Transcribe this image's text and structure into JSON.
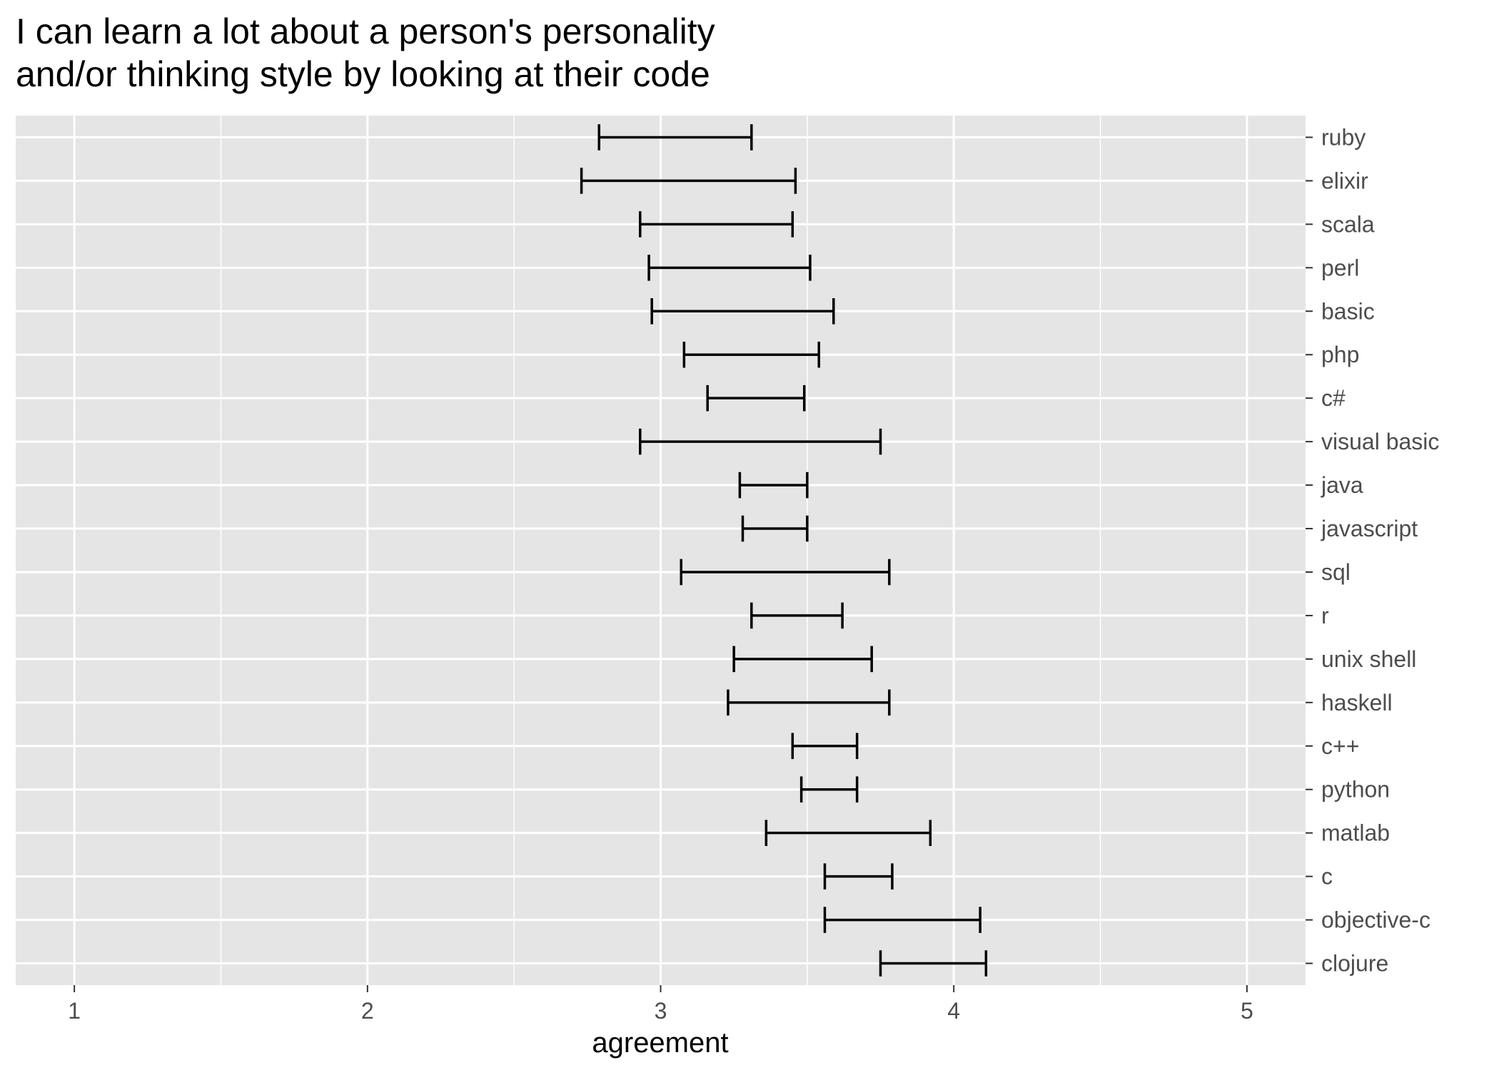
{
  "chart_data": {
    "type": "errorbar",
    "orientation": "horizontal",
    "title_lines": [
      "I can learn a lot about a person's personality",
      "and/or thinking style by looking at their code"
    ],
    "xlabel": "agreement",
    "ylabel": "",
    "xlim": [
      0.8,
      5.2
    ],
    "x_ticks": [
      1,
      2,
      3,
      4,
      5
    ],
    "y_axis_position": "right",
    "grid": true,
    "legend": "none",
    "colors": {
      "panel_background": "#e5e5e5",
      "gridline": "#ffffff",
      "errorbar": "#000000",
      "tick_label": "#4d4d4d"
    },
    "series": [
      {
        "label": "ruby",
        "low": 2.79,
        "high": 3.31
      },
      {
        "label": "elixir",
        "low": 2.73,
        "high": 3.46
      },
      {
        "label": "scala",
        "low": 2.93,
        "high": 3.45
      },
      {
        "label": "perl",
        "low": 2.96,
        "high": 3.51
      },
      {
        "label": "basic",
        "low": 2.97,
        "high": 3.59
      },
      {
        "label": "php",
        "low": 3.08,
        "high": 3.54
      },
      {
        "label": "c#",
        "low": 3.16,
        "high": 3.49
      },
      {
        "label": "visual basic",
        "low": 2.93,
        "high": 3.75
      },
      {
        "label": "java",
        "low": 3.27,
        "high": 3.5
      },
      {
        "label": "javascript",
        "low": 3.28,
        "high": 3.5
      },
      {
        "label": "sql",
        "low": 3.07,
        "high": 3.78
      },
      {
        "label": "r",
        "low": 3.31,
        "high": 3.62
      },
      {
        "label": "unix shell",
        "low": 3.25,
        "high": 3.72
      },
      {
        "label": "haskell",
        "low": 3.23,
        "high": 3.78
      },
      {
        "label": "c++",
        "low": 3.45,
        "high": 3.67
      },
      {
        "label": "python",
        "low": 3.48,
        "high": 3.67
      },
      {
        "label": "matlab",
        "low": 3.36,
        "high": 3.92
      },
      {
        "label": "c",
        "low": 3.56,
        "high": 3.79
      },
      {
        "label": "objective-c",
        "low": 3.56,
        "high": 4.09
      },
      {
        "label": "clojure",
        "low": 3.75,
        "high": 4.11
      }
    ]
  }
}
